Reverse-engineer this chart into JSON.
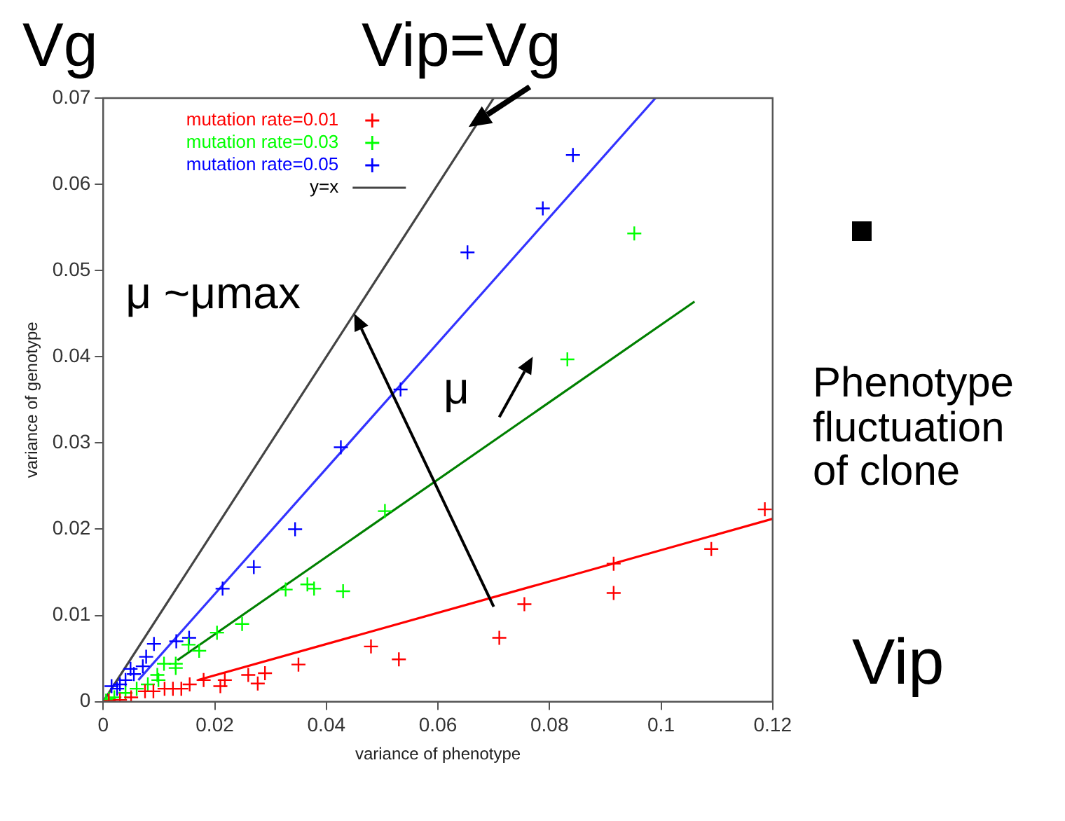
{
  "chart_data": {
    "type": "scatter",
    "xlabel": "variance of phenotype",
    "ylabel": "variance of genotype",
    "xlim": [
      0,
      0.12
    ],
    "ylim": [
      0,
      0.07
    ],
    "xticks": [
      0,
      0.02,
      0.04,
      0.06,
      0.08,
      0.1,
      0.12
    ],
    "yticks": [
      0,
      0.01,
      0.02,
      0.03,
      0.04,
      0.05,
      0.06,
      0.07
    ],
    "grid": false,
    "legend": "top left",
    "annotations": [
      "Vg",
      "Vip=Vg",
      "μ ~μmax",
      "μ",
      "Phenotype fluctuation of clone",
      "Vip"
    ],
    "series": [
      {
        "name": "mutation rate=0.01",
        "type": "scatter",
        "color": "#ff0000",
        "marker": "cross",
        "x": [
          0.001,
          0.003,
          0.005,
          0.0075,
          0.009,
          0.011,
          0.0125,
          0.014,
          0.0155,
          0.018,
          0.021,
          0.0218,
          0.026,
          0.0277,
          0.029,
          0.035,
          0.048,
          0.053,
          0.071,
          0.0755,
          0.0915,
          0.0915,
          0.109,
          0.1186
        ],
        "values": [
          0.0001,
          0.0002,
          0.0005,
          0.0012,
          0.0012,
          0.0015,
          0.0015,
          0.0015,
          0.002,
          0.0025,
          0.0018,
          0.0025,
          0.0031,
          0.0021,
          0.0033,
          0.0043,
          0.0064,
          0.0049,
          0.0074,
          0.0113,
          0.016,
          0.0126,
          0.0177,
          0.0223
        ]
      },
      {
        "name": "mutation rate=0.03",
        "type": "scatter",
        "color": "#00ff00",
        "marker": "cross",
        "x": [
          0.0005,
          0.001,
          0.002,
          0.004,
          0.006,
          0.008,
          0.0097,
          0.0099,
          0.0109,
          0.013,
          0.013,
          0.0153,
          0.0172,
          0.0204,
          0.0249,
          0.0327,
          0.0366,
          0.0378,
          0.043,
          0.0505,
          0.0832,
          0.0952
        ],
        "values": [
          0.0001,
          0.0003,
          0.0005,
          0.001,
          0.0015,
          0.002,
          0.0031,
          0.0025,
          0.0044,
          0.0039,
          0.0044,
          0.0066,
          0.0059,
          0.008,
          0.009,
          0.013,
          0.0136,
          0.0131,
          0.0128,
          0.0221,
          0.0397,
          0.0543
        ]
      },
      {
        "name": "mutation rate=0.05",
        "type": "scatter",
        "color": "#0000ff",
        "marker": "cross",
        "x": [
          0.0015,
          0.0025,
          0.003,
          0.004,
          0.0049,
          0.0055,
          0.0071,
          0.0077,
          0.0091,
          0.0131,
          0.0154,
          0.0214,
          0.027,
          0.0344,
          0.0426,
          0.0533,
          0.0653,
          0.0788,
          0.0842
        ],
        "values": [
          0.0018,
          0.0015,
          0.002,
          0.0025,
          0.0038,
          0.0032,
          0.0041,
          0.0052,
          0.0067,
          0.007,
          0.0074,
          0.0131,
          0.0156,
          0.02,
          0.0295,
          0.0362,
          0.0521,
          0.0572,
          0.0634
        ]
      },
      {
        "type": "line",
        "color": "#ff0000",
        "marker": "none",
        "x": [
          0.017,
          0.12
        ],
        "values": [
          0.0025,
          0.0212
        ]
      },
      {
        "type": "line",
        "color": "#008000",
        "marker": "none",
        "x": [
          0.0133,
          0.106
        ],
        "values": [
          0.0048,
          0.0464
        ]
      },
      {
        "type": "line",
        "color": "#3333ff",
        "marker": "none",
        "x": [
          0.0063,
          0.099
        ],
        "values": [
          0.0025,
          0.07
        ]
      },
      {
        "name": "y=x",
        "type": "line",
        "color": "#444444",
        "marker": "none",
        "x": [
          0,
          0.07
        ],
        "values": [
          0,
          0.07
        ]
      }
    ]
  }
}
